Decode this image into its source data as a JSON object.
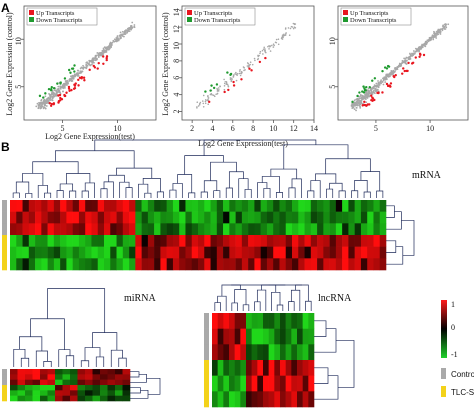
{
  "panels": {
    "a": "A",
    "b": "B"
  },
  "chart_data": [
    {
      "type": "scatter",
      "xlabel": "Log2 Gene Expression(test)",
      "ylabel": "Log2 Gene Expression (control)",
      "xticks": [
        5,
        10
      ],
      "yticks": [
        5,
        10
      ],
      "xlim": [
        1.5,
        13.5
      ],
      "ylim": [
        1.5,
        13.5
      ],
      "legend": [
        "Up Transcripts",
        "Down Transcripts"
      ],
      "legend_position": "top-left",
      "colors": {
        "up": "#e8161f",
        "down": "#1f9a2f",
        "other": "#a8a8a8"
      }
    },
    {
      "type": "scatter",
      "xlabel": "Log2 Gene Expression(test)",
      "ylabel": "Log2 Gene Expression (control)",
      "xticks": [
        2,
        4,
        6,
        8,
        10,
        12,
        14
      ],
      "yticks": [
        2,
        4,
        6,
        8,
        10,
        12,
        14
      ],
      "xlim": [
        1,
        14
      ],
      "ylim": [
        1,
        14.5
      ],
      "legend": [
        "Up Transcripts",
        "Down Transcripts"
      ],
      "legend_position": "top-left",
      "colors": {
        "up": "#e8161f",
        "down": "#1f9a2f",
        "other": "#a8a8a8"
      }
    },
    {
      "type": "scatter",
      "xlabel": "",
      "ylabel": "",
      "xticks": [
        5,
        10
      ],
      "yticks": [
        5,
        10
      ],
      "xlim": [
        1.5,
        13.5
      ],
      "ylim": [
        1.5,
        13.5
      ],
      "legend": [
        "Up Transcripts",
        "Down Transcripts"
      ],
      "legend_position": "top-left",
      "colors": {
        "up": "#e8161f",
        "down": "#1f9a2f",
        "other": "#a8a8a8"
      }
    },
    {
      "type": "heatmap",
      "label": "mRNA",
      "rows": 6,
      "cols": 60,
      "groups": [
        "Control",
        "Control",
        "Control",
        "TLC-S",
        "TLC-S",
        "TLC-S"
      ]
    },
    {
      "type": "heatmap",
      "label": "miRNA",
      "rows": 6,
      "cols": 16,
      "groups": [
        "Control",
        "Control",
        "Control",
        "TLC-S",
        "TLC-S",
        "TLC-S"
      ]
    },
    {
      "type": "heatmap",
      "label": "lncRNA",
      "rows": 6,
      "cols": 18,
      "groups": [
        "Control",
        "Control",
        "Control",
        "TLC-S",
        "TLC-S",
        "TLC-S"
      ]
    }
  ],
  "colorbar": {
    "max": "1",
    "mid": "0",
    "min": "-1"
  },
  "group_legend": {
    "control": "Control",
    "tlcs": "TLC-S",
    "control_color": "#a9a9a9",
    "tlcs_color": "#f3d21a"
  }
}
